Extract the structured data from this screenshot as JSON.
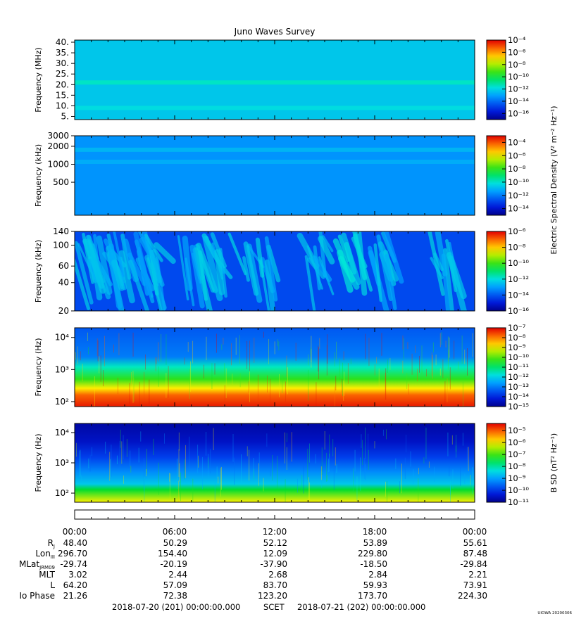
{
  "title": "Juno Waves Survey",
  "footer": {
    "start": "2018-07-20 (201) 00:00:00.000",
    "frame": "SCET",
    "end": "2018-07-21 (202) 00:00:00.000",
    "stamp": "UIOWA 20200306"
  },
  "colorbar_labels": {
    "e_field": "Electric Spectral Density (V² m⁻² Hz⁻¹)",
    "b_field": "B SD (nT² Hz⁻¹)"
  },
  "chart_data": [
    {
      "type": "heatmap",
      "panel": 1,
      "ylabel": "Frequency (MHz)",
      "ylim": [
        3.5,
        41
      ],
      "yscale": "linear",
      "yticks": [
        5,
        10,
        15,
        20,
        25,
        30,
        35,
        40
      ],
      "ytick_labels": [
        "5.",
        "10.",
        "15.",
        "20.",
        "25.",
        "30.",
        "35.",
        "40."
      ],
      "colorbar": {
        "scale": "log",
        "range_exp": [
          -17,
          -4
        ],
        "tick_labels": [
          "10⁻⁴",
          "10⁻⁶",
          "10⁻⁸",
          "10⁻¹⁰",
          "10⁻¹²",
          "10⁻¹⁴",
          "10⁻¹⁶"
        ],
        "tick_exps": [
          -4,
          -6,
          -8,
          -10,
          -12,
          -14,
          -16
        ]
      },
      "background_exp": -12.3,
      "bands": [
        {
          "freq": 21,
          "exp": -11.3
        },
        {
          "freq": 9,
          "exp": -11.8
        }
      ]
    },
    {
      "type": "heatmap",
      "panel": 2,
      "ylabel": "Frequency (kHz)",
      "ylim": [
        140,
        3000
      ],
      "yscale": "log",
      "yticks": [
        500,
        1000,
        2000,
        3000
      ],
      "ytick_labels": [
        "500",
        "1000",
        "2000",
        "3000"
      ],
      "colorbar": {
        "scale": "log",
        "range_exp": [
          -15,
          -3
        ],
        "tick_labels": [
          "10⁻⁴",
          "10⁻⁶",
          "10⁻⁸",
          "10⁻¹⁰",
          "10⁻¹²",
          "10⁻¹⁴"
        ],
        "tick_exps": [
          -4,
          -6,
          -8,
          -10,
          -12,
          -14
        ]
      },
      "background_exp": -11.6,
      "bands": [
        {
          "freq": 1750,
          "exp": -10.9
        },
        {
          "freq": 1100,
          "exp": -11.1
        }
      ]
    },
    {
      "type": "heatmap",
      "panel": 3,
      "ylabel": "Frequency (kHz)",
      "ylim": [
        20,
        140
      ],
      "yscale": "log",
      "yticks": [
        20,
        40,
        60,
        100,
        140
      ],
      "ytick_labels": [
        "20",
        "40",
        "60",
        "100",
        "140"
      ],
      "colorbar": {
        "scale": "log",
        "range_exp": [
          -16,
          -6
        ],
        "tick_labels": [
          "10⁻⁶",
          "10⁻⁸",
          "10⁻¹⁰",
          "10⁻¹²",
          "10⁻¹⁴",
          "10⁻¹⁶"
        ],
        "tick_exps": [
          -6,
          -8,
          -10,
          -12,
          -14,
          -16
        ]
      },
      "background_exp": -14.2,
      "streaks": [
        {
          "t": 0.4,
          "w": 1.4,
          "exp": -12.6
        },
        {
          "t": 1.6,
          "w": 1.6,
          "exp": -12.8
        },
        {
          "t": 2.6,
          "w": 1.5,
          "exp": -12.7
        },
        {
          "t": 3.6,
          "w": 1.2,
          "exp": -12.9
        },
        {
          "t": 4.6,
          "w": 1.1,
          "exp": -12.7
        },
        {
          "t": 6.8,
          "w": 1.5,
          "exp": -12.6
        },
        {
          "t": 8.6,
          "w": 1.7,
          "exp": -12.5
        },
        {
          "t": 10.8,
          "w": 1.8,
          "exp": -12.7
        },
        {
          "t": 14.2,
          "w": 1.6,
          "exp": -12.6
        },
        {
          "t": 16.4,
          "w": 1.5,
          "exp": -12.4
        },
        {
          "t": 18.2,
          "w": 1.2,
          "exp": -12.8
        },
        {
          "t": 21.8,
          "w": 1.8,
          "exp": -12.5
        }
      ]
    },
    {
      "type": "heatmap",
      "panel": 4,
      "ylabel": "Frequency (Hz)",
      "ylim": [
        70,
        20000
      ],
      "yscale": "log",
      "yticks": [
        100,
        1000,
        10000
      ],
      "ytick_labels": [
        "10²",
        "10³",
        "10⁴"
      ],
      "colorbar": {
        "scale": "log",
        "range_exp": [
          -15,
          -7
        ],
        "tick_labels": [
          "10⁻⁷",
          "10⁻⁸",
          "10⁻⁹",
          "10⁻¹⁰",
          "10⁻¹¹",
          "10⁻¹²",
          "10⁻¹³",
          "10⁻¹⁴",
          "10⁻¹⁵"
        ],
        "tick_exps": [
          -7,
          -8,
          -9,
          -10,
          -11,
          -12,
          -13,
          -14,
          -15
        ]
      },
      "spectrum": [
        {
          "freq": 70,
          "exp": -7.2
        },
        {
          "freq": 160,
          "exp": -7.8
        },
        {
          "freq": 260,
          "exp": -8.9
        },
        {
          "freq": 500,
          "exp": -10.3
        },
        {
          "freq": 1200,
          "exp": -11.5
        },
        {
          "freq": 2500,
          "exp": -13.0
        },
        {
          "freq": 20000,
          "exp": -13.4
        }
      ]
    },
    {
      "type": "heatmap",
      "panel": 5,
      "ylabel": "Frequency (Hz)",
      "ylim": [
        50,
        20000
      ],
      "yscale": "log",
      "yticks": [
        100,
        1000,
        10000
      ],
      "ytick_labels": [
        "10²",
        "10³",
        "10⁴"
      ],
      "colorbar": {
        "scale": "log",
        "range_exp": [
          -11,
          -4.4
        ],
        "tick_labels": [
          "10⁻⁵",
          "10⁻⁶",
          "10⁻⁷",
          "10⁻⁸",
          "10⁻⁹",
          "10⁻¹⁰",
          "10⁻¹¹"
        ],
        "tick_exps": [
          -5,
          -6,
          -7,
          -8,
          -9,
          -10,
          -11
        ]
      },
      "spectrum": [
        {
          "freq": 50,
          "exp": -6.0
        },
        {
          "freq": 130,
          "exp": -7.4
        },
        {
          "freq": 200,
          "exp": -8.6
        },
        {
          "freq": 500,
          "exp": -9.2
        },
        {
          "freq": 1500,
          "exp": -9.9
        },
        {
          "freq": 5000,
          "exp": -10.5
        },
        {
          "freq": 20000,
          "exp": -10.8
        }
      ]
    }
  ],
  "time_axis": {
    "range_hours": [
      0,
      24
    ],
    "tick_hours": [
      0,
      6,
      12,
      18,
      24
    ],
    "labels": [
      "00:00",
      "06:00",
      "12:00",
      "18:00",
      "00:00"
    ]
  },
  "ephemeris": [
    {
      "label": "R",
      "sub": "J",
      "values": [
        "48.40",
        "50.29",
        "52.12",
        "53.89",
        "55.61"
      ]
    },
    {
      "label": "Lon",
      "sub": "III",
      "values": [
        "296.70",
        "154.40",
        "12.09",
        "229.80",
        "87.48"
      ]
    },
    {
      "label": "MLat",
      "sub": "JRM09",
      "values": [
        "-29.74",
        "-20.19",
        "-37.90",
        "-18.50",
        "-29.84"
      ]
    },
    {
      "label": "MLT",
      "sub": "",
      "values": [
        "3.02",
        "2.44",
        "2.68",
        "2.84",
        "2.21"
      ]
    },
    {
      "label": "L",
      "sub": "",
      "values": [
        "64.20",
        "57.09",
        "83.70",
        "59.93",
        "73.91"
      ]
    },
    {
      "label": "Io Phase",
      "sub": "",
      "values": [
        "21.26",
        "72.38",
        "123.20",
        "173.70",
        "224.30"
      ]
    }
  ]
}
